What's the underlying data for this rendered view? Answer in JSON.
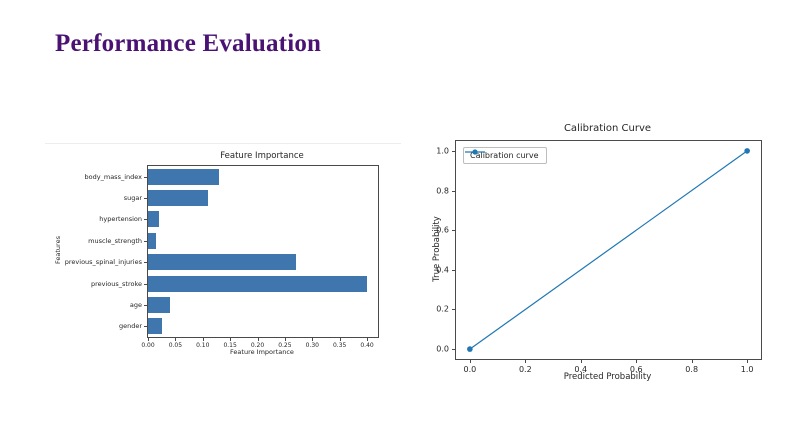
{
  "slide": {
    "title": "Performance Evaluation",
    "title_color": "#4a1273",
    "background_color": "#ffffff"
  },
  "chart_data": [
    {
      "type": "bar",
      "orientation": "horizontal",
      "title": "Feature Importance",
      "xlabel": "Feature Importance",
      "ylabel": "Features",
      "categories": [
        "body_mass_index",
        "sugar",
        "hypertension",
        "muscle_strength",
        "previous_spinal_injuries",
        "previous_stroke",
        "age",
        "gender"
      ],
      "values": [
        0.13,
        0.11,
        0.02,
        0.015,
        0.27,
        0.4,
        0.04,
        0.025
      ],
      "xticks": [
        0.0,
        0.05,
        0.1,
        0.15,
        0.2,
        0.25,
        0.3,
        0.35,
        0.4
      ],
      "xtick_labels": [
        "0.00",
        "0.05",
        "0.10",
        "0.15",
        "0.20",
        "0.25",
        "0.30",
        "0.35",
        "0.40"
      ],
      "xlim": [
        0,
        0.42
      ],
      "bar_color": "#3f76ae",
      "grid": false,
      "legend_position": "none"
    },
    {
      "type": "line",
      "title": "Calibration Curve",
      "xlabel": "Predicted Probability",
      "ylabel": "True Probability",
      "legend": [
        {
          "label": "Calibration curve",
          "color": "#1f77b4",
          "marker": "circle"
        }
      ],
      "legend_position": "upper left",
      "series": [
        {
          "name": "Calibration curve",
          "color": "#1f77b4",
          "marker": "circle",
          "points": [
            [
              0.0,
              0.0
            ],
            [
              1.0,
              1.0
            ]
          ]
        }
      ],
      "xticks": [
        0.0,
        0.2,
        0.4,
        0.6,
        0.8,
        1.0
      ],
      "yticks": [
        0.0,
        0.2,
        0.4,
        0.6,
        0.8,
        1.0
      ],
      "xtick_labels": [
        "0.0",
        "0.2",
        "0.4",
        "0.6",
        "0.8",
        "1.0"
      ],
      "ytick_labels": [
        "0.0",
        "0.2",
        "0.4",
        "0.6",
        "0.8",
        "1.0"
      ],
      "xlim": [
        -0.05,
        1.05
      ],
      "ylim": [
        -0.05,
        1.05
      ],
      "grid": false
    }
  ]
}
